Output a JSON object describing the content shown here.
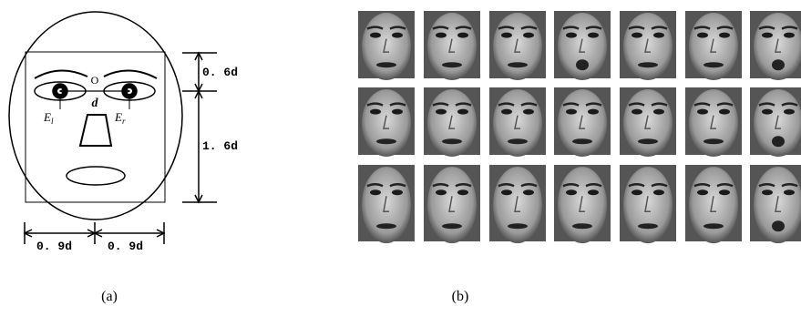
{
  "panel_a": {
    "center_label": "O",
    "distance_label": "d",
    "eye_left": {
      "base": "E",
      "sub": "l"
    },
    "eye_right": {
      "base": "E",
      "sub": "r"
    },
    "upper_height": "0. 6d",
    "lower_height": "1. 6d",
    "left_width": "0. 9d",
    "right_width": "0. 9d",
    "caption": "(a)"
  },
  "panel_b": {
    "caption": "(b)"
  }
}
